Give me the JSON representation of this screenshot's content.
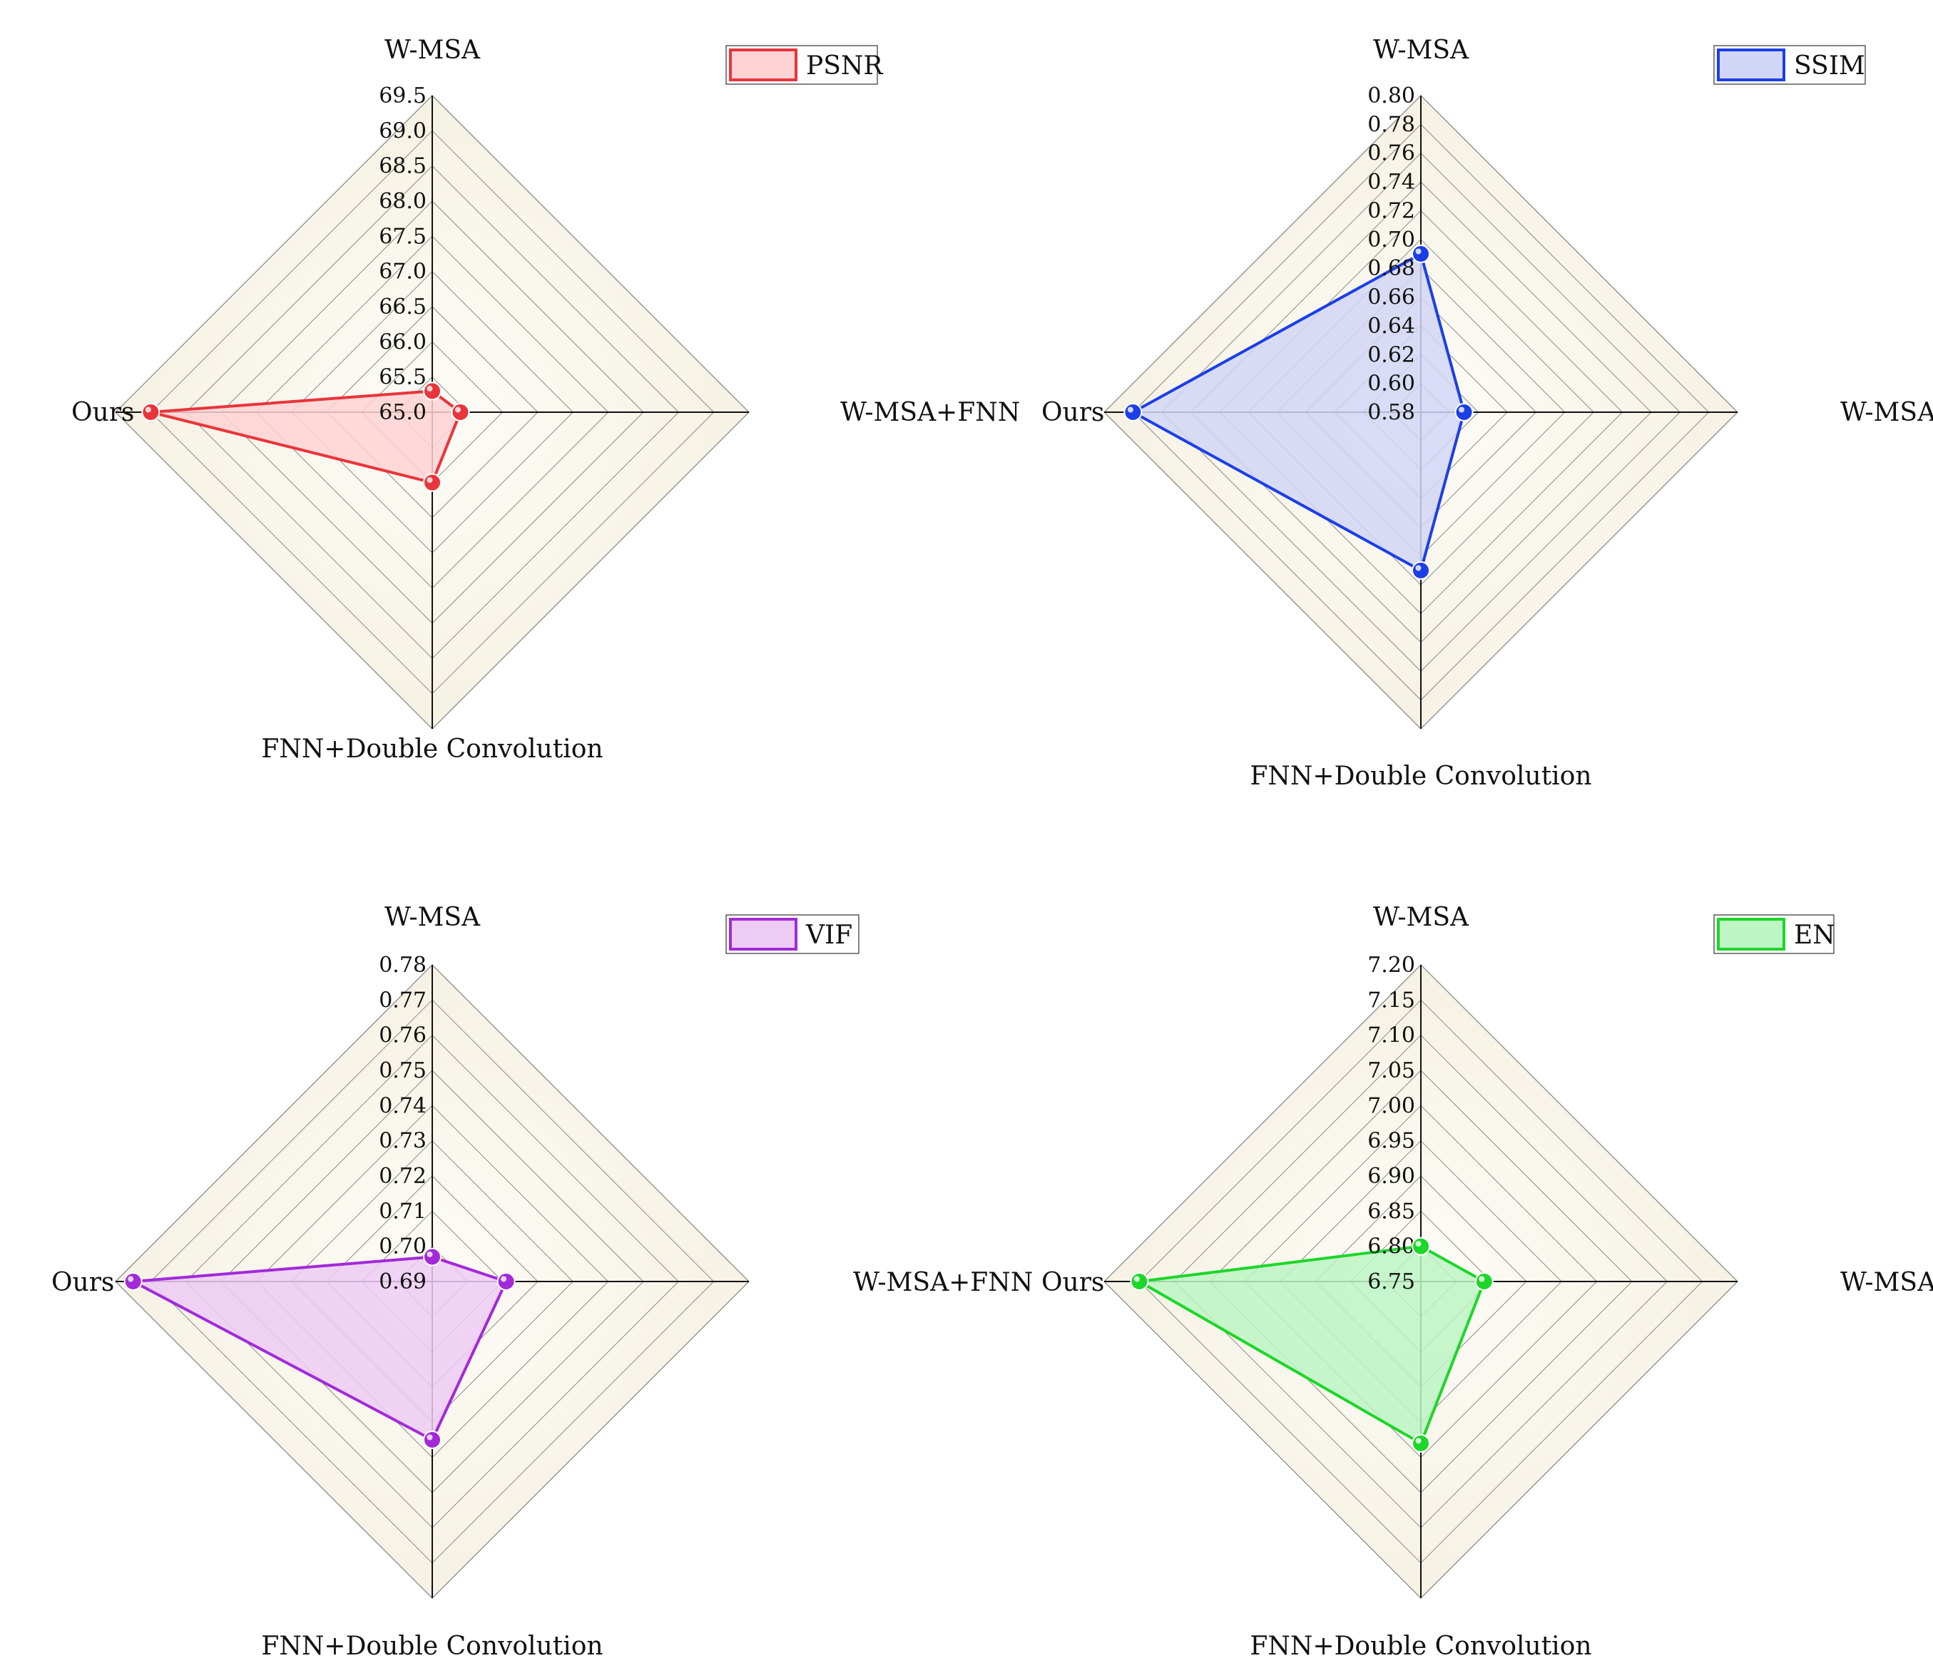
{
  "chart_data": [
    {
      "type": "radar",
      "axes": [
        "W-MSA",
        "W-MSA+FNN",
        "FNN+Double Convolution",
        "Ours"
      ],
      "rlim": [
        65.0,
        69.5
      ],
      "ticks": [
        "65.0",
        "65.5",
        "66.0",
        "66.5",
        "67.0",
        "67.5",
        "68.0",
        "68.5",
        "69.0",
        "69.5"
      ],
      "series": [
        {
          "name": "PSNR",
          "values": [
            65.3,
            65.4,
            66.0,
            69.0
          ]
        }
      ],
      "legend_position": "top-right",
      "grid": true,
      "color": "#e8353b",
      "fill": "#ffd2d4",
      "ticks_count": 10
    },
    {
      "type": "radar",
      "axes": [
        "W-MSA",
        "W-MSA+FNN",
        "FNN+Double Convolution",
        "Ours"
      ],
      "rlim": [
        0.58,
        0.8
      ],
      "ticks": [
        "0.58",
        "0.60",
        "0.62",
        "0.64",
        "0.66",
        "0.68",
        "0.70",
        "0.72",
        "0.74",
        "0.76",
        "0.78",
        "0.80"
      ],
      "series": [
        {
          "name": "SSIM",
          "values": [
            0.69,
            0.61,
            0.69,
            0.78
          ]
        }
      ],
      "legend_position": "top-right",
      "grid": true,
      "color": "#1b3fe6",
      "fill": "#d2d6f6",
      "ticks_count": 12
    },
    {
      "type": "radar",
      "axes": [
        "W-MSA",
        "W-MSA+FNN",
        "FNN+Double Convolution",
        "Ours"
      ],
      "rlim": [
        0.69,
        0.78
      ],
      "ticks": [
        "0.69",
        "0.70",
        "0.71",
        "0.72",
        "0.73",
        "0.74",
        "0.75",
        "0.76",
        "0.77",
        "0.78"
      ],
      "series": [
        {
          "name": "VIF",
          "values": [
            0.697,
            0.711,
            0.735,
            0.775
          ]
        }
      ],
      "legend_position": "top-right",
      "grid": true,
      "color": "#a22ad8",
      "fill": "#edcbf5",
      "ticks_count": 10
    },
    {
      "type": "radar",
      "axes": [
        "W-MSA",
        "W-MSA+FNN",
        "FNN+Double Convolution",
        "Ours"
      ],
      "rlim": [
        6.75,
        7.2
      ],
      "ticks": [
        "6.75",
        "6.80",
        "6.85",
        "6.90",
        "6.95",
        "7.00",
        "7.05",
        "7.10",
        "7.15",
        "7.20"
      ],
      "series": [
        {
          "name": "EN",
          "values": [
            6.8,
            6.84,
            6.98,
            7.15
          ]
        }
      ],
      "legend_position": "top-right",
      "grid": true,
      "color": "#1ed62a",
      "fill": "#bdf5c4",
      "ticks_count": 10
    }
  ]
}
